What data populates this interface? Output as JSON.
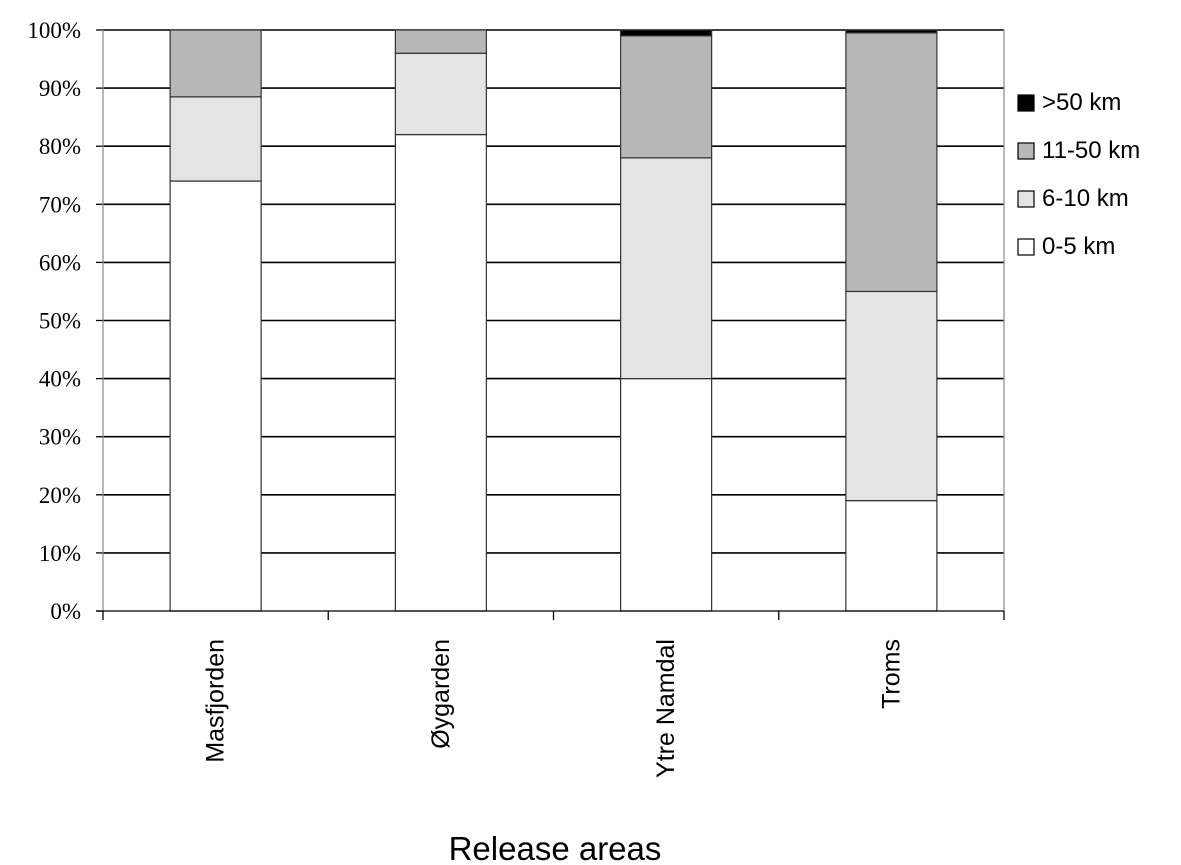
{
  "chart_data": {
    "type": "bar",
    "stacked": true,
    "percent": true,
    "title": "",
    "xlabel": "Release areas",
    "ylabel": "",
    "ylim": [
      0,
      100
    ],
    "yticks": [
      "0%",
      "10%",
      "20%",
      "30%",
      "40%",
      "50%",
      "60%",
      "70%",
      "80%",
      "90%",
      "100%"
    ],
    "categories": [
      "Masfjorden",
      "Øygarden",
      "Ytre Namdal",
      "Troms"
    ],
    "series": [
      {
        "name": "0-5 km",
        "color": "#ffffff",
        "values": [
          74,
          82,
          40,
          19
        ]
      },
      {
        "name": "6-10 km",
        "color": "#e4e4e4",
        "values": [
          14.5,
          14,
          38,
          36
        ]
      },
      {
        "name": "11-50 km",
        "color": "#b8b8b8",
        "values": [
          11.5,
          4,
          21,
          44.5
        ]
      },
      {
        "name": ">50 km",
        "color": "#000000",
        "values": [
          0,
          0,
          1,
          0.5
        ]
      }
    ],
    "legend": {
      "position": "right",
      "order": [
        ">50 km",
        "11-50 km",
        "6-10 km",
        "0-5 km"
      ]
    },
    "grid": true
  }
}
